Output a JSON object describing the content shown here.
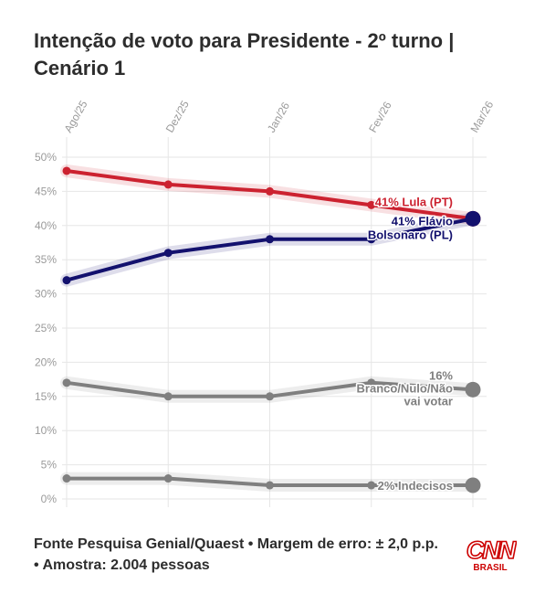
{
  "title": "Intenção de voto para Presidente - 2º turno | Cenário 1",
  "footer": "Fonte Pesquisa Genial/Quaest • Margem de erro: ± 2,0 p.p. • Amostra: 2.004 pessoas",
  "logo": {
    "wordmark": "CNN",
    "sub": "BRASIL",
    "color": "#cc0000"
  },
  "chart_data": {
    "type": "line",
    "title": "Intenção de voto para Presidente - 2º turno | Cenário 1",
    "xlabel": "",
    "ylabel": "",
    "categories": [
      "Ago/25",
      "Dez/25",
      "Jan/26",
      "Fev/26",
      "Mar/26"
    ],
    "ylim": [
      0,
      50
    ],
    "yticks": [
      0,
      5,
      10,
      15,
      20,
      25,
      30,
      35,
      40,
      45,
      50
    ],
    "ytick_labels": [
      "0%",
      "5%",
      "10%",
      "15%",
      "20%",
      "25%",
      "30%",
      "35%",
      "40%",
      "45%",
      "50%"
    ],
    "grid": true,
    "legend": "none",
    "series": [
      {
        "key": "lula",
        "values": [
          48,
          46,
          45,
          43,
          41
        ],
        "color": "#cc2230",
        "label_lines": [
          "41% Lula (PT)"
        ],
        "label_bold": true
      },
      {
        "key": "flavio",
        "values": [
          32,
          36,
          38,
          38,
          41
        ],
        "color": "#13116e",
        "label_lines": [
          "41% Flávio",
          "Bolsonaro (PL)"
        ],
        "label_bold": true
      },
      {
        "key": "branco",
        "values": [
          17,
          15,
          15,
          17,
          16
        ],
        "color": "#7f7f7f",
        "label_lines": [
          "16%",
          "Branco/Nulo/Não",
          "vai votar"
        ],
        "label_bold": true
      },
      {
        "key": "indecisos",
        "values": [
          3,
          3,
          2,
          2,
          2
        ],
        "color": "#7f7f7f",
        "label_lines": [
          "2% Indecisos"
        ],
        "label_bold": true
      }
    ]
  }
}
